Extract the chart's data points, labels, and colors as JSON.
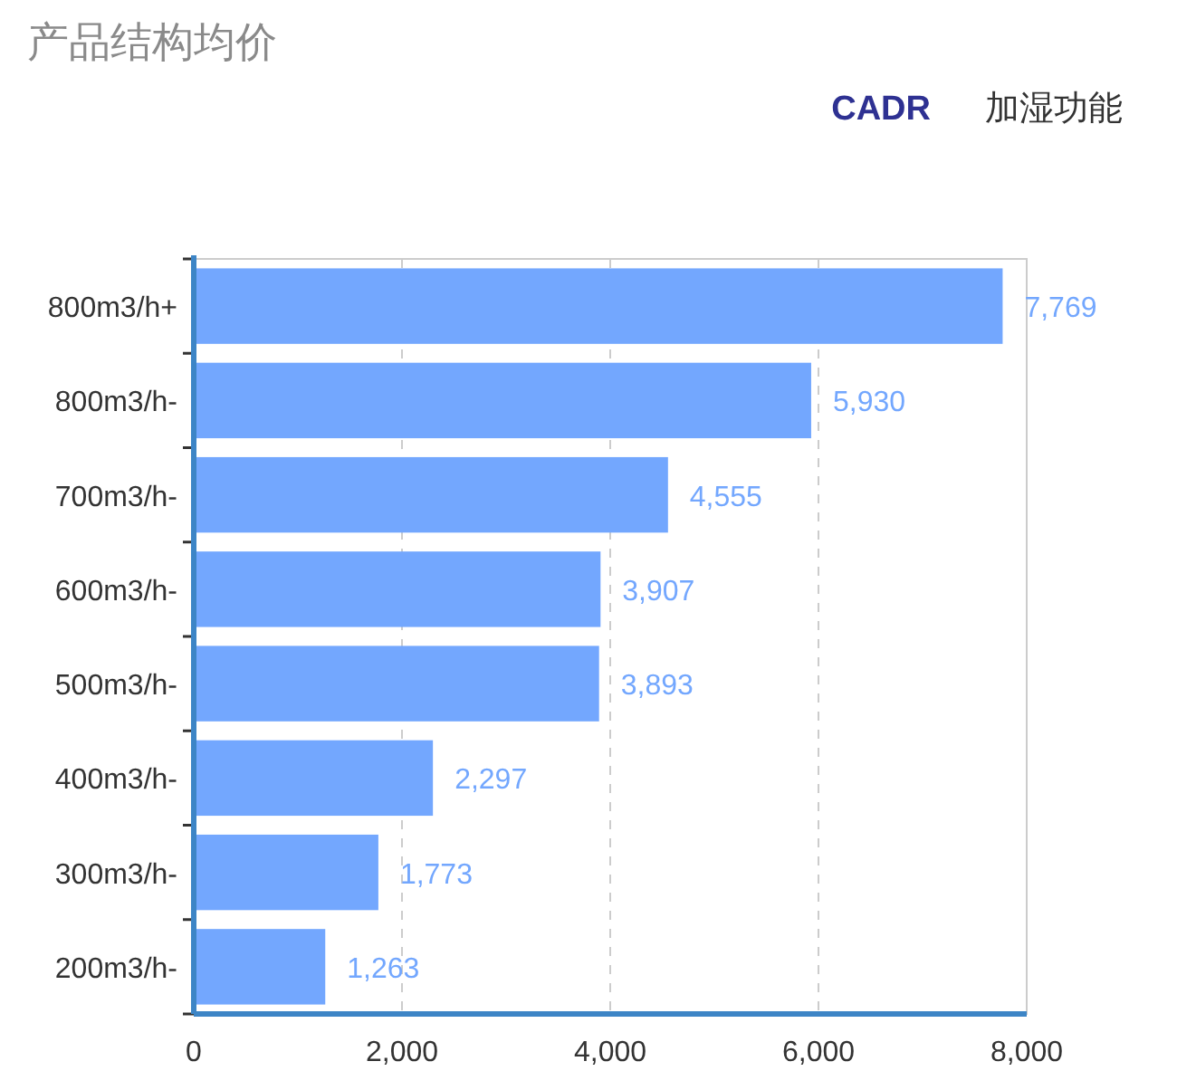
{
  "chart_data": {
    "type": "bar",
    "orientation": "horizontal",
    "title": "产品结构均价",
    "annotations": [
      "CADR",
      "加湿功能"
    ],
    "categories": [
      "800m3/h+",
      "800m3/h-",
      "700m3/h-",
      "600m3/h-",
      "500m3/h-",
      "400m3/h-",
      "300m3/h-",
      "200m3/h-"
    ],
    "values": [
      7769,
      5930,
      4555,
      3907,
      3893,
      2297,
      1773,
      1263
    ],
    "value_labels": [
      "7,769",
      "5,930",
      "4,555",
      "3,907",
      "3,893",
      "2,297",
      "1,773",
      "1,263"
    ],
    "color": "#73a7fe",
    "xlim": [
      0,
      8000
    ],
    "xticks": [
      0,
      {
        "value": 2000,
        "label": "2,000"
      },
      {
        "value": 4000,
        "label": "4,000"
      },
      {
        "value": 6000,
        "label": "6,000"
      },
      {
        "value": 8000,
        "label": "8,000"
      }
    ],
    "grid": "x"
  }
}
